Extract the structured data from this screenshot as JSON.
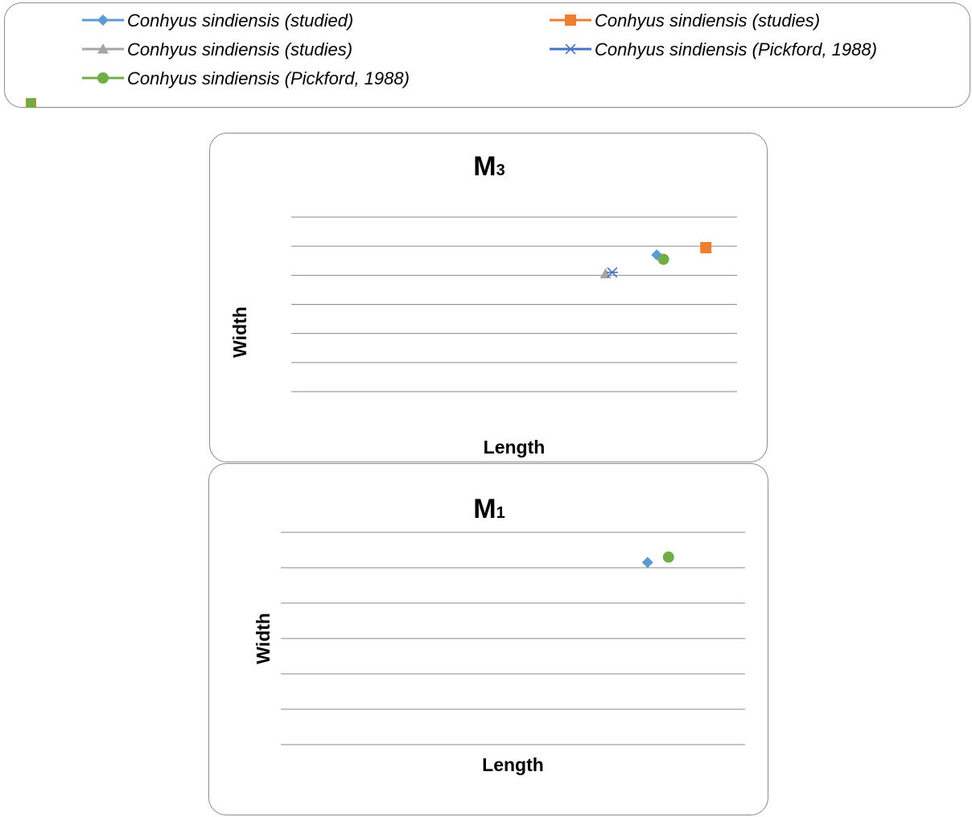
{
  "legend": {
    "items": [
      {
        "label": "Conhyus sindiensis (studied)",
        "marker": "diamond",
        "color": "#5b9bd5"
      },
      {
        "label": "Conhyus sindiensis (studies)",
        "marker": "square",
        "color": "#ed7d31"
      },
      {
        "label": "Conhyus sindiensis (studies)",
        "marker": "triangle",
        "color": "#a5a5a5"
      },
      {
        "label": "Conhyus sindiensis (Pickford, 1988)",
        "marker": "star",
        "color": "#4472c4"
      },
      {
        "label": "Conhyus sindiensis (Pickford, 1988)",
        "marker": "circle",
        "color": "#70ad47"
      }
    ]
  },
  "chart_data": [
    {
      "type": "scatter",
      "title_main": "M",
      "title_sub": "3",
      "xlabel": "Length",
      "ylabel": "Width",
      "xlim": [
        0,
        10
      ],
      "ylim": [
        0,
        6
      ],
      "grid": true,
      "series": [
        {
          "name": "Conhyus sindiensis (studied)",
          "marker": "diamond",
          "color": "#5b9bd5",
          "points": [
            [
              8.2,
              4.7
            ]
          ]
        },
        {
          "name": "Conhyus sindiensis (studies)",
          "marker": "square",
          "color": "#ed7d31",
          "points": [
            [
              9.3,
              4.95
            ]
          ]
        },
        {
          "name": "Conhyus sindiensis (studies)",
          "marker": "triangle",
          "color": "#a5a5a5",
          "points": [
            [
              7.05,
              4.05
            ]
          ]
        },
        {
          "name": "Conhyus sindiensis (Pickford, 1988)",
          "marker": "star",
          "color": "#4472c4",
          "points": [
            [
              7.2,
              4.1
            ]
          ]
        },
        {
          "name": "Conhyus sindiensis (Pickford, 1988)",
          "marker": "circle",
          "color": "#70ad47",
          "points": [
            [
              8.35,
              4.55
            ]
          ]
        }
      ]
    },
    {
      "type": "scatter",
      "title_main": "M",
      "title_sub": "1",
      "xlabel": "Length",
      "ylabel": "Width",
      "xlim": [
        0,
        10
      ],
      "ylim": [
        0,
        6
      ],
      "grid": true,
      "series": [
        {
          "name": "Conhyus sindiensis (studied)",
          "marker": "diamond",
          "color": "#5b9bd5",
          "points": [
            [
              7.9,
              5.15
            ]
          ]
        },
        {
          "name": "Conhyus sindiensis (Pickford, 1988)",
          "marker": "circle",
          "color": "#70ad47",
          "points": [
            [
              8.35,
              5.3
            ]
          ]
        }
      ]
    }
  ]
}
